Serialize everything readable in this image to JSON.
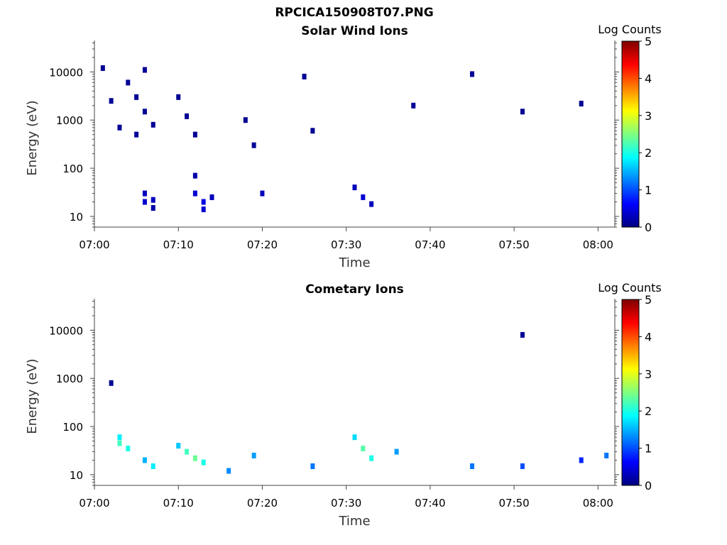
{
  "figure": {
    "title": "RPCICA150908T07.PNG"
  },
  "chart_data": [
    {
      "type": "heatmap",
      "title": "Solar Wind Ions",
      "xlabel": "Time",
      "ylabel": "Energy (eV)",
      "x_ticks": [
        "07:00",
        "07:10",
        "07:20",
        "07:30",
        "07:40",
        "07:50",
        "08:00"
      ],
      "xlim": [
        "07:00",
        "08:02"
      ],
      "y_scale": "log",
      "y_ticks": [
        "10",
        "100",
        "1000",
        "10000"
      ],
      "ylim": [
        6,
        45000
      ],
      "colorbar": {
        "label": "Log Counts",
        "ticks": [
          "0",
          "1",
          "2",
          "3",
          "4",
          "5"
        ],
        "range": [
          0,
          5
        ],
        "colormap": "jet"
      },
      "cells": [
        {
          "t": "07:01",
          "e": 12000,
          "v": 0.1
        },
        {
          "t": "07:02",
          "e": 2500,
          "v": 0.1
        },
        {
          "t": "07:03",
          "e": 700,
          "v": 0.1
        },
        {
          "t": "07:04",
          "e": 6000,
          "v": 0.1
        },
        {
          "t": "07:05",
          "e": 3000,
          "v": 0.1
        },
        {
          "t": "07:05",
          "e": 500,
          "v": 0.1
        },
        {
          "t": "07:06",
          "e": 11000,
          "v": 0.1
        },
        {
          "t": "07:06",
          "e": 1500,
          "v": 0.1
        },
        {
          "t": "07:07",
          "e": 800,
          "v": 0.1
        },
        {
          "t": "07:06",
          "e": 30,
          "v": 0.3
        },
        {
          "t": "07:06",
          "e": 20,
          "v": 0.4
        },
        {
          "t": "07:07",
          "e": 22,
          "v": 0.3
        },
        {
          "t": "07:07",
          "e": 15,
          "v": 0.2
        },
        {
          "t": "07:10",
          "e": 3000,
          "v": 0.1
        },
        {
          "t": "07:11",
          "e": 1200,
          "v": 0.1
        },
        {
          "t": "07:12",
          "e": 500,
          "v": 0.1
        },
        {
          "t": "07:12",
          "e": 30,
          "v": 0.4
        },
        {
          "t": "07:13",
          "e": 20,
          "v": 0.5
        },
        {
          "t": "07:13",
          "e": 14,
          "v": 0.4
        },
        {
          "t": "07:12",
          "e": 70,
          "v": 0.2
        },
        {
          "t": "07:14",
          "e": 25,
          "v": 0.3
        },
        {
          "t": "07:18",
          "e": 1000,
          "v": 0.1
        },
        {
          "t": "07:19",
          "e": 300,
          "v": 0.1
        },
        {
          "t": "07:20",
          "e": 30,
          "v": 0.3
        },
        {
          "t": "07:25",
          "e": 8000,
          "v": 0.1
        },
        {
          "t": "07:26",
          "e": 600,
          "v": 0.1
        },
        {
          "t": "07:31",
          "e": 40,
          "v": 0.3
        },
        {
          "t": "07:32",
          "e": 25,
          "v": 0.4
        },
        {
          "t": "07:33",
          "e": 18,
          "v": 0.3
        },
        {
          "t": "07:38",
          "e": 2000,
          "v": 0.1
        },
        {
          "t": "07:45",
          "e": 9000,
          "v": 0.1
        },
        {
          "t": "07:51",
          "e": 1500,
          "v": 0.1
        },
        {
          "t": "07:58",
          "e": 2200,
          "v": 0.1
        }
      ]
    },
    {
      "type": "heatmap",
      "title": "Cometary Ions",
      "xlabel": "Time",
      "ylabel": "Energy (eV)",
      "x_ticks": [
        "07:00",
        "07:10",
        "07:20",
        "07:30",
        "07:40",
        "07:50",
        "08:00"
      ],
      "xlim": [
        "07:00",
        "08:02"
      ],
      "y_scale": "log",
      "y_ticks": [
        "10",
        "100",
        "1000",
        "10000"
      ],
      "ylim": [
        6,
        45000
      ],
      "colorbar": {
        "label": "Log Counts",
        "ticks": [
          "0",
          "1",
          "2",
          "3",
          "4",
          "5"
        ],
        "range": [
          0,
          5
        ],
        "colormap": "jet"
      },
      "cells": [
        {
          "t": "07:02",
          "e": 800,
          "v": 0.1
        },
        {
          "t": "07:03",
          "e": 60,
          "v": 1.8
        },
        {
          "t": "07:03",
          "e": 45,
          "v": 2.2
        },
        {
          "t": "07:04",
          "e": 35,
          "v": 2.0
        },
        {
          "t": "07:06",
          "e": 20,
          "v": 1.5
        },
        {
          "t": "07:07",
          "e": 15,
          "v": 1.8
        },
        {
          "t": "07:10",
          "e": 40,
          "v": 1.6
        },
        {
          "t": "07:11",
          "e": 30,
          "v": 2.2
        },
        {
          "t": "07:12",
          "e": 22,
          "v": 2.4
        },
        {
          "t": "07:13",
          "e": 18,
          "v": 2.0
        },
        {
          "t": "07:16",
          "e": 12,
          "v": 1.3
        },
        {
          "t": "07:19",
          "e": 25,
          "v": 1.4
        },
        {
          "t": "07:26",
          "e": 15,
          "v": 1.2
        },
        {
          "t": "07:31",
          "e": 60,
          "v": 1.7
        },
        {
          "t": "07:32",
          "e": 35,
          "v": 2.3
        },
        {
          "t": "07:33",
          "e": 22,
          "v": 2.0
        },
        {
          "t": "07:36",
          "e": 30,
          "v": 1.4
        },
        {
          "t": "07:45",
          "e": 15,
          "v": 1.2
        },
        {
          "t": "07:51",
          "e": 8000,
          "v": 0.1
        },
        {
          "t": "07:51",
          "e": 15,
          "v": 1.0
        },
        {
          "t": "07:58",
          "e": 20,
          "v": 0.8
        },
        {
          "t": "08:01",
          "e": 25,
          "v": 1.2
        }
      ]
    }
  ]
}
